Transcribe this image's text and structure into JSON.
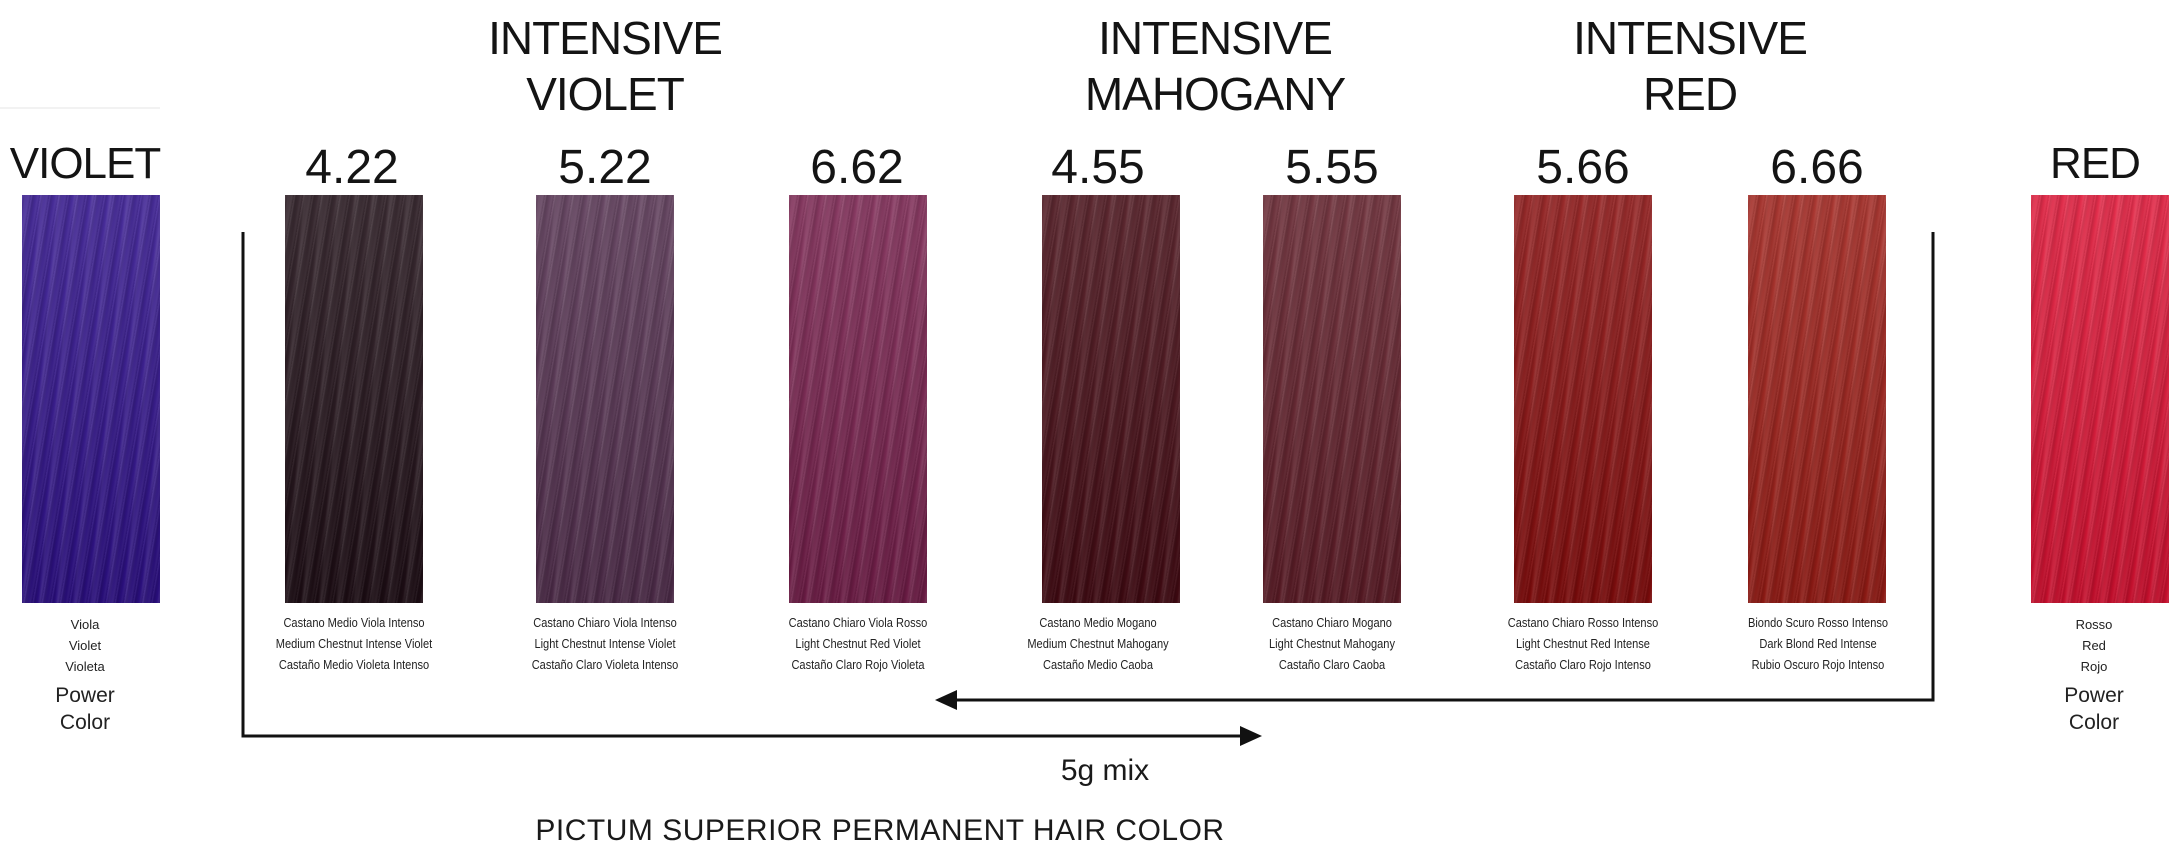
{
  "group_titles": [
    {
      "line1": "INTENSIVE",
      "line2": "VIOLET"
    },
    {
      "line1": "INTENSIVE",
      "line2": "MAHOGANY"
    },
    {
      "line1": "INTENSIVE",
      "line2": "RED"
    }
  ],
  "side_left": {
    "title": "VIOLET",
    "names": [
      "Viola",
      "Violet",
      "Violeta"
    ],
    "power_line1": "Power",
    "power_line2": "Color",
    "color": "#3a1f8c"
  },
  "side_right": {
    "title": "RED",
    "names": [
      "Rosso",
      "Red",
      "Rojo"
    ],
    "power_line1": "Power",
    "power_line2": "Color",
    "color": "#d6203e"
  },
  "shades": [
    {
      "code": "4.22",
      "names": [
        "Castano Medio Viola Intenso",
        "Medium Chestnut Intense Violet",
        "Castaño Medio Violeta Intenso"
      ],
      "color": "#2c1d24"
    },
    {
      "code": "5.22",
      "names": [
        "Castano Chiaro Viola Intenso",
        "Light Chestnut Intense Violet",
        "Castaño Claro Violeta Intenso"
      ],
      "color": "#5a3a56"
    },
    {
      "code": "6.62",
      "names": [
        "Castano Chiaro Viola Rosso",
        "Light Chestnut Red Violet",
        "Castaño Claro Rojo Violeta"
      ],
      "color": "#7a2c54"
    },
    {
      "code": "4.55",
      "names": [
        "Castano Medio Mogano",
        "Medium Chestnut Mahogany",
        "Castaño Medio Caoba"
      ],
      "color": "#4e1a22"
    },
    {
      "code": "5.55",
      "names": [
        "Castano Chiaro Mogano",
        "Light Chestnut Mahogany",
        "Castaño Claro Caoba"
      ],
      "color": "#662a34"
    },
    {
      "code": "5.66",
      "names": [
        "Castano Chiaro Rosso Intenso",
        "Light Chestnut Red Intense",
        "Castaño Claro Rojo Intenso"
      ],
      "color": "#8a1c1c"
    },
    {
      "code": "6.66",
      "names": [
        "Biondo Scuro Rosso Intenso",
        "Dark Blond Red Intense",
        "Rubio Oscuro Rojo Intenso"
      ],
      "color": "#9c2a24"
    }
  ],
  "mix_label": "5g mix",
  "footer": "PICTUM SUPERIOR PERMANENT HAIR COLOR"
}
